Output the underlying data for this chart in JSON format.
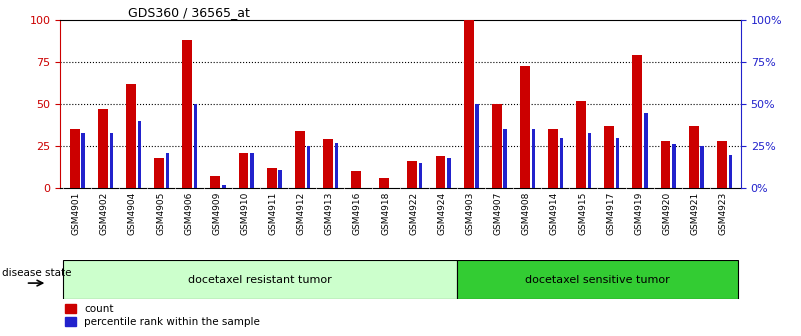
{
  "title": "GDS360 / 36565_at",
  "categories": [
    "GSM4901",
    "GSM4902",
    "GSM4904",
    "GSM4905",
    "GSM4906",
    "GSM4909",
    "GSM4910",
    "GSM4911",
    "GSM4912",
    "GSM4913",
    "GSM4916",
    "GSM4918",
    "GSM4922",
    "GSM4924",
    "GSM4903",
    "GSM4907",
    "GSM4908",
    "GSM4914",
    "GSM4915",
    "GSM4917",
    "GSM4919",
    "GSM4920",
    "GSM4921",
    "GSM4923"
  ],
  "count_values": [
    35,
    47,
    62,
    18,
    88,
    7,
    21,
    12,
    34,
    29,
    10,
    6,
    16,
    19,
    100,
    50,
    73,
    35,
    52,
    37,
    79,
    28,
    37,
    28
  ],
  "percentile_values": [
    33,
    33,
    40,
    21,
    50,
    2,
    21,
    11,
    25,
    27,
    0,
    0,
    15,
    18,
    50,
    35,
    35,
    30,
    33,
    30,
    45,
    26,
    25,
    20
  ],
  "group1_label": "docetaxel resistant tumor",
  "group2_label": "docetaxel sensitive tumor",
  "group1_count": 14,
  "group2_count": 10,
  "legend1": "count",
  "legend2": "percentile rank within the sample",
  "disease_state_label": "disease state",
  "bar_color_red": "#CC0000",
  "bar_color_blue": "#2222CC",
  "group1_bg": "#CCFFCC",
  "group2_bg": "#33CC33",
  "ylim": [
    0,
    100
  ],
  "yticks": [
    0,
    25,
    50,
    75,
    100
  ],
  "yticklabels_left": [
    "0",
    "25",
    "50",
    "75",
    "100"
  ],
  "yticklabels_right": [
    "0%",
    "25%",
    "50%",
    "75%",
    "100%"
  ]
}
